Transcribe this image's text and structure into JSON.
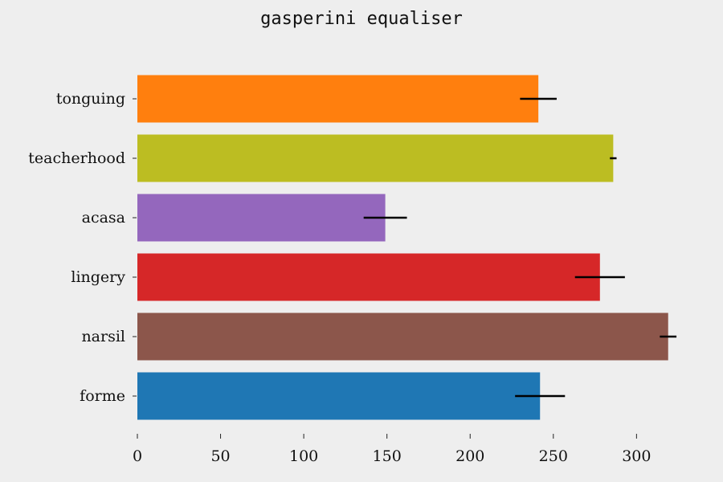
{
  "chart_data": {
    "type": "bar",
    "orientation": "horizontal",
    "title": "gasperini equaliser",
    "xlabel": "",
    "ylabel": "",
    "xlim": [
      0,
      330
    ],
    "grid": false,
    "legend": "none",
    "categories": [
      "tonguing",
      "teacherhood",
      "acasa",
      "lingery",
      "narsil",
      "forme"
    ],
    "values": [
      241,
      286,
      149,
      278,
      319,
      242
    ],
    "errors": [
      11,
      2,
      13,
      15,
      5,
      15
    ],
    "colors": [
      "#ff7f0e",
      "#bcbd22",
      "#9467bd",
      "#d62728",
      "#8c564b",
      "#1f77b4"
    ],
    "x_ticks": [
      "0",
      "50",
      "100",
      "150",
      "200",
      "250",
      "300"
    ]
  }
}
